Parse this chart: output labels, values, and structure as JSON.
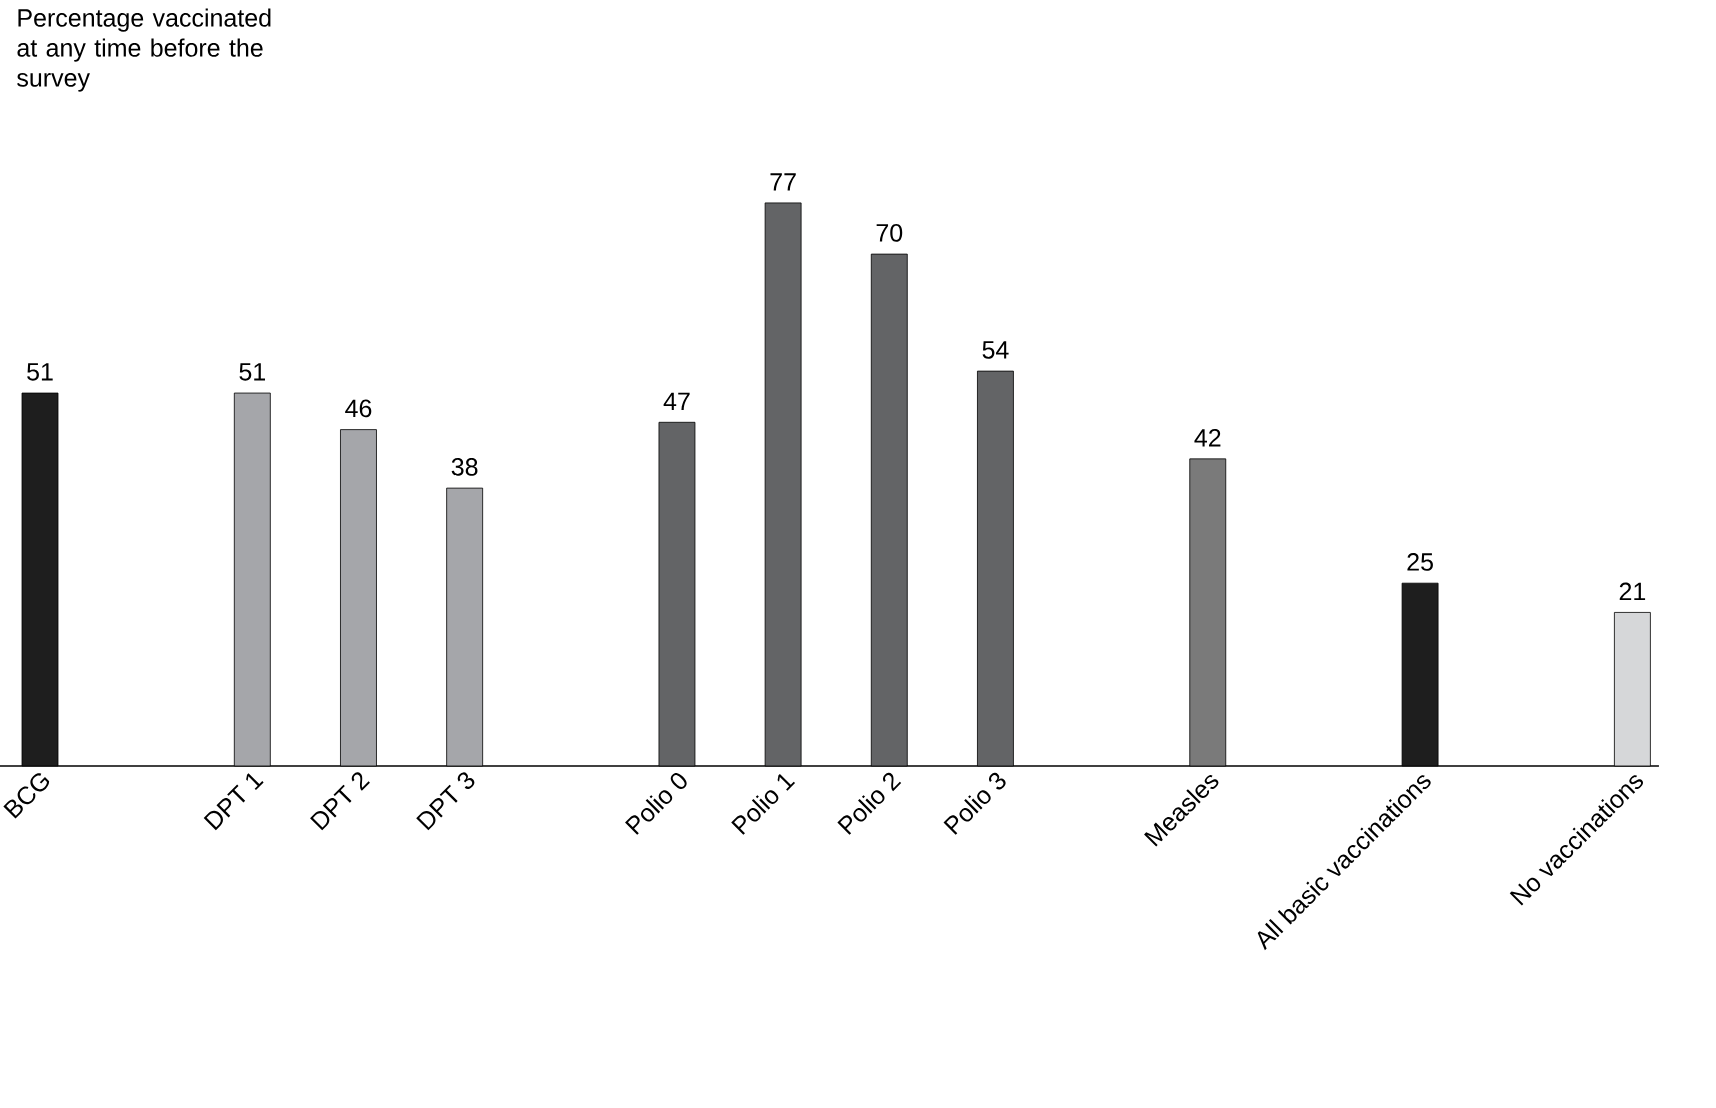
{
  "chart_data": {
    "type": "bar",
    "annotations": [
      "Percentage vaccinated at any time before the survey"
    ],
    "categories": [
      "BCG",
      null,
      "DPT 1",
      "DPT 2",
      "DPT 3",
      null,
      "Polio 0",
      "Polio 1",
      "Polio 2",
      "Polio 3",
      null,
      "Measles",
      null,
      "All basic vaccinations",
      null,
      "No vaccinations"
    ],
    "values": [
      51,
      null,
      51,
      46,
      38,
      null,
      47,
      77,
      70,
      54,
      null,
      42,
      null,
      25,
      null,
      21
    ],
    "colors": [
      "#1e1e1e",
      null,
      "#a5a6aa",
      "#a5a6aa",
      "#a5a6aa",
      null,
      "#636466",
      "#636466",
      "#636466",
      "#636466",
      null,
      "#7a7a7a",
      null,
      "#1e1e1e",
      null,
      "#d6d7d9"
    ],
    "data_labels": true
  }
}
